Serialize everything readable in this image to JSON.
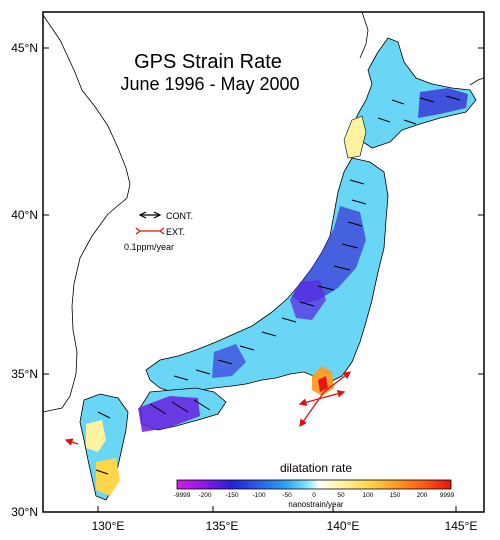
{
  "title": "GPS Strain Rate",
  "subtitle": "June 1996 - May 2000",
  "axes": {
    "lat_labels": [
      "45°N",
      "40°N",
      "35°N",
      "30°N"
    ],
    "lon_labels": [
      "130°E",
      "135°E",
      "140°E",
      "145°E"
    ]
  },
  "legend": {
    "compression_label": "CONT.",
    "extension_label": "EXT.",
    "scale_label": "0.1ppm/year",
    "compression_color": "#000000",
    "extension_color": "#e01010"
  },
  "colorbar": {
    "title": "dilatation rate",
    "unit": "nanostrain/year",
    "ticks": [
      "-9999",
      "-200",
      "-150",
      "-100",
      "-50",
      "0",
      "50",
      "100",
      "150",
      "200",
      "9999"
    ],
    "colors": [
      "#d21ee6",
      "#7a17e8",
      "#2520d8",
      "#2a4fe6",
      "#2a90ee",
      "#4cc8f2",
      "#8fe6ff",
      "#ffffff",
      "#fff3a0",
      "#ffd64a",
      "#ff9b22",
      "#ff5a14",
      "#e61414"
    ]
  },
  "colors": {
    "land_base": "#69d6f5",
    "coastline": "#000000",
    "frame": "#000000"
  }
}
